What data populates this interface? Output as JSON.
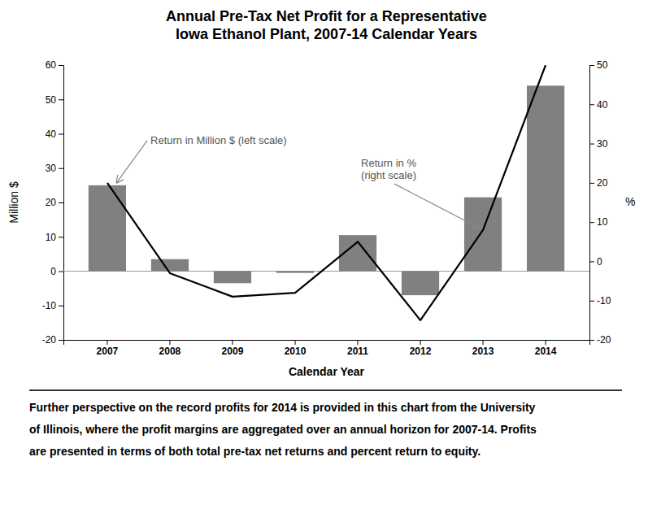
{
  "chart_data": {
    "type": "bar",
    "title": "Annual Pre-Tax Net Profit for a Representative\nIowa Ethanol Plant, 2007-14 Calendar Years",
    "categories": [
      "2007",
      "2008",
      "2009",
      "2010",
      "2011",
      "2012",
      "2013",
      "2014"
    ],
    "series": [
      {
        "type": "bar",
        "color": "#808080",
        "values": [
          25,
          3.5,
          -3.5,
          -0.5,
          10.5,
          -7,
          21.5,
          54
        ]
      },
      {
        "type": "line",
        "color": "#000000",
        "axis": "y2",
        "values": [
          20,
          -3,
          -9,
          -8,
          5,
          -15,
          8,
          50
        ]
      }
    ],
    "x_label": "Calendar Year",
    "y_label": "Million $",
    "y2_label": "%",
    "ylim": [
      -20,
      60
    ],
    "yticks": [
      -20,
      -10,
      0,
      10,
      20,
      30,
      40,
      50,
      60
    ],
    "y2lim": [
      -20,
      50
    ],
    "y2ticks": [
      -20,
      -10,
      0,
      10,
      20,
      30,
      40,
      50
    ],
    "grid": false,
    "annotations": [
      "Return in Million $ (left scale)",
      "Return in %\n(right scale)"
    ],
    "caption": [
      "Further perspective on the record profits for 2014 is provided in this chart from the University",
      "of Illinois, where the profit margins are aggregated over an annual horizon for 2007-14. Profits",
      "are presented in terms of both total pre-tax net returns and percent return to equity."
    ]
  }
}
